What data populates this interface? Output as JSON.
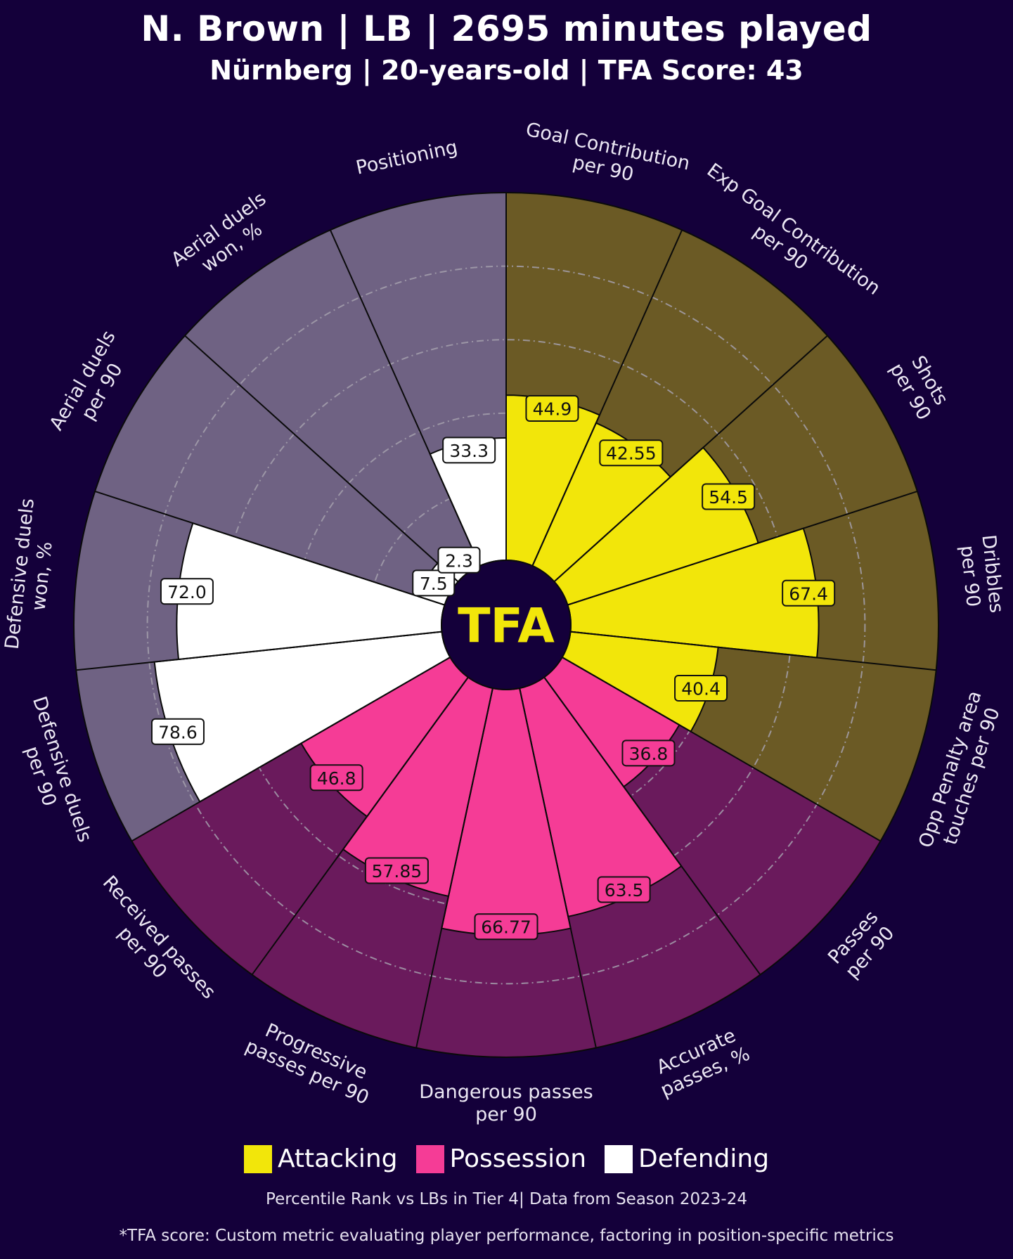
{
  "header": {
    "title": "N. Brown | LB | 2695 minutes played",
    "subtitle": "Nürnberg | 20-years-old | TFA Score: 43"
  },
  "logo_text": "TFA",
  "legend": [
    {
      "label": "Attacking",
      "color": "#f2e60a"
    },
    {
      "label": "Possession",
      "color": "#f53c96"
    },
    {
      "label": "Defending",
      "color": "#ffffff"
    }
  ],
  "footnotes": {
    "line1": "Percentile Rank vs LBs in Tier 4| Data from Season 2023-24",
    "line2": "*TFA score: Custom metric evaluating player performance, factoring in position-specific metrics"
  },
  "colors": {
    "background": "#14003a",
    "attacking": "#f2e60a",
    "attacking_bg": "#6b5a25",
    "possession": "#f53c96",
    "possession_bg": "#6a1a5c",
    "defending": "#ffffff",
    "defending_bg": "#6f6283",
    "center": "#14003a",
    "logo": "#f2e60a"
  },
  "chart_data": {
    "type": "pizza",
    "title": "N. Brown | LB | 2695 minutes played",
    "subtitle": "Nürnberg | 20-years-old | TFA Score: 43",
    "range": [
      0,
      100
    ],
    "gridlines": [
      20,
      40,
      60,
      80
    ],
    "start_direction": "top, clockwise",
    "metrics": [
      {
        "label": "Goal Contribution\nper 90",
        "value": 44.9,
        "display": "44.9",
        "group": "Attacking"
      },
      {
        "label": "Exp Goal Contribution\nper 90",
        "value": 42.55,
        "display": "42.55",
        "group": "Attacking"
      },
      {
        "label": "Shots\nper 90",
        "value": 54.5,
        "display": "54.5",
        "group": "Attacking"
      },
      {
        "label": "Dribbles\nper 90",
        "value": 67.4,
        "display": "67.4",
        "group": "Attacking"
      },
      {
        "label": "Opp Penalty area\ntouches per 90",
        "value": 40.4,
        "display": "40.4",
        "group": "Attacking"
      },
      {
        "label": "Passes\nper 90",
        "value": 36.8,
        "display": "36.8",
        "group": "Possession"
      },
      {
        "label": "Accurate\npasses, %",
        "value": 63.5,
        "display": "63.5",
        "group": "Possession"
      },
      {
        "label": "Dangerous passes\nper 90",
        "value": 66.77,
        "display": "66.77",
        "group": "Possession"
      },
      {
        "label": "Progressive\npasses per 90",
        "value": 57.85,
        "display": "57.85",
        "group": "Possession"
      },
      {
        "label": "Received passes\nper 90",
        "value": 46.8,
        "display": "46.8",
        "group": "Possession"
      },
      {
        "label": "Defensive duels\nper 90",
        "value": 78.6,
        "display": "78.6",
        "group": "Defending"
      },
      {
        "label": "Defensive duels\nwon, %",
        "value": 72.0,
        "display": "72.0",
        "group": "Defending"
      },
      {
        "label": "Aerial duels\nper 90",
        "value": 7.5,
        "display": "7.5",
        "group": "Defending"
      },
      {
        "label": "Aerial duels\nwon, %",
        "value": 2.3,
        "display": "2.3",
        "group": "Defending"
      },
      {
        "label": "Positioning",
        "value": 33.3,
        "display": "33.3",
        "group": "Defending"
      }
    ]
  }
}
